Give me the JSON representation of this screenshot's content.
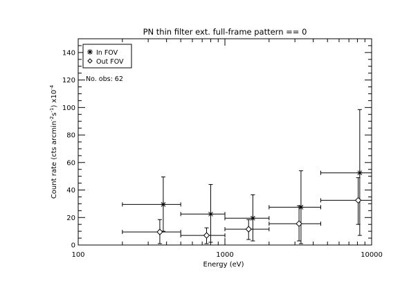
{
  "chart_data": {
    "type": "scatter",
    "title": "PN thin filter ext. full-frame pattern == 0",
    "xlabel": "Energy (eV)",
    "ylabel": "Count rate (cts arcmin",
    "ylabel_sup1": "-2",
    "ylabel_mid": "s",
    "ylabel_sup2": "-1",
    "ylabel_end": ") x10",
    "ylabel_sup3": "-4",
    "x_scale": "log",
    "xlim": [
      100,
      10000
    ],
    "ylim": [
      0,
      150
    ],
    "x_ticks": [
      100,
      1000,
      10000
    ],
    "x_tick_labels": [
      "100",
      "1000",
      "10000"
    ],
    "y_ticks": [
      0,
      20,
      40,
      60,
      80,
      100,
      120,
      140
    ],
    "y_tick_labels": [
      "0",
      "20",
      "40",
      "60",
      "80",
      "100",
      "120",
      "140"
    ],
    "grid": false,
    "legend_position": "top-left",
    "legend": [
      {
        "name": "In FOV",
        "marker": "asterisk"
      },
      {
        "name": "Out FOV",
        "marker": "diamond"
      }
    ],
    "annotation": "No. obs: 62",
    "series": [
      {
        "name": "In FOV",
        "marker": "asterisk",
        "points": [
          {
            "x": 380,
            "y": 29.5,
            "xlo": 200,
            "xhi": 500,
            "ylo": 10,
            "yhi": 49.5
          },
          {
            "x": 800,
            "y": 22.5,
            "xlo": 500,
            "xhi": 1000,
            "ylo": 2,
            "yhi": 44
          },
          {
            "x": 1550,
            "y": 19.5,
            "xlo": 1000,
            "xhi": 2000,
            "ylo": 3,
            "yhi": 36.5
          },
          {
            "x": 3300,
            "y": 27.5,
            "xlo": 2000,
            "xhi": 4500,
            "ylo": 1,
            "yhi": 54
          },
          {
            "x": 8300,
            "y": 52.5,
            "xlo": 4500,
            "xhi": 10000,
            "ylo": 7,
            "yhi": 98.5
          }
        ]
      },
      {
        "name": "Out FOV",
        "marker": "diamond",
        "points": [
          {
            "x": 360,
            "y": 9.5,
            "xlo": 200,
            "xhi": 500,
            "ylo": 1,
            "yhi": 18.5
          },
          {
            "x": 750,
            "y": 7,
            "xlo": 500,
            "xhi": 1000,
            "ylo": 1,
            "yhi": 12.5
          },
          {
            "x": 1450,
            "y": 11.5,
            "xlo": 1000,
            "xhi": 2000,
            "ylo": 4,
            "yhi": 18.5
          },
          {
            "x": 3200,
            "y": 15.5,
            "xlo": 2000,
            "xhi": 4500,
            "ylo": 3,
            "yhi": 28.5
          },
          {
            "x": 8100,
            "y": 32.5,
            "xlo": 4500,
            "xhi": 10000,
            "ylo": 15,
            "yhi": 49
          }
        ]
      }
    ]
  }
}
